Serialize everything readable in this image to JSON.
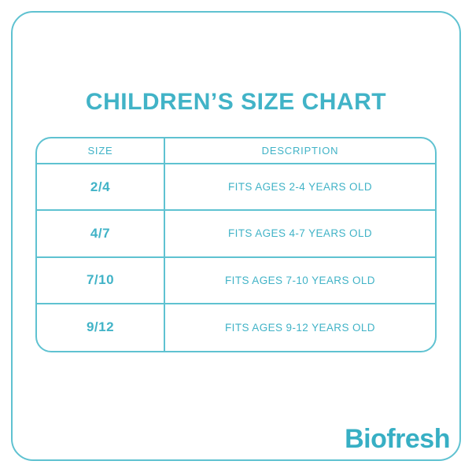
{
  "page": {
    "title": "CHILDREN’S SIZE CHART",
    "brand": "Biofresh"
  },
  "colors": {
    "accent": "#41B3C7",
    "border": "#5FC2D1",
    "logo": "#37AFC4",
    "background": "#FFFFFF"
  },
  "table": {
    "headers": [
      "SIZE",
      "DESCRIPTION"
    ],
    "rows": [
      {
        "size": "2/4",
        "description": "FITS AGES 2-4 YEARS OLD"
      },
      {
        "size": "4/7",
        "description": "FITS AGES 4-7 YEARS OLD"
      },
      {
        "size": "7/10",
        "description": "FITS AGES 7-10 YEARS OLD"
      },
      {
        "size": "9/12",
        "description": "FITS AGES 9-12 YEARS OLD"
      }
    ]
  }
}
